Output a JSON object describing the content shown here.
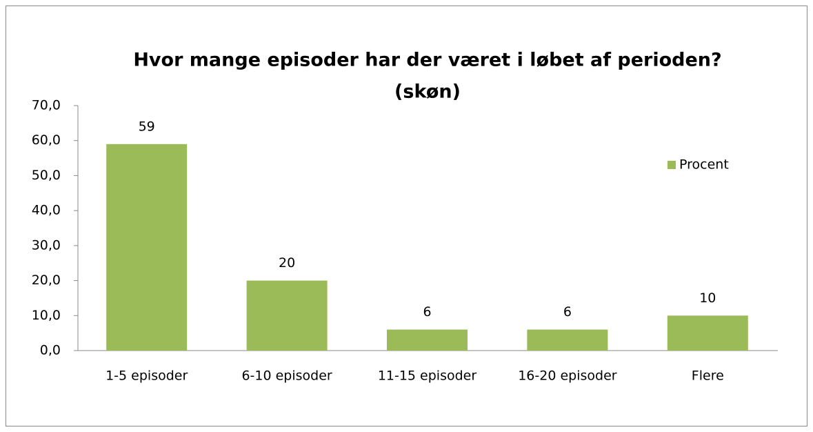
{
  "chart_data": {
    "type": "bar",
    "title": [
      "Hvor mange episoder har der været i løbet af perioden?",
      "(skøn)"
    ],
    "categories": [
      "1-5 episoder",
      "6-10 episoder",
      "11-15 episoder",
      "16-20 episoder",
      "Flere"
    ],
    "series": [
      {
        "name": "Procent",
        "color": "#9bbb59",
        "values": [
          59,
          20,
          6,
          6,
          10
        ]
      }
    ],
    "ylim": [
      0,
      70
    ],
    "yticks": [
      {
        "value": 0,
        "label": "0,0"
      },
      {
        "value": 10,
        "label": "10,0"
      },
      {
        "value": 20,
        "label": "20,0"
      },
      {
        "value": 30,
        "label": "30,0"
      },
      {
        "value": 40,
        "label": "40,0"
      },
      {
        "value": 50,
        "label": "50,0"
      },
      {
        "value": 60,
        "label": "60,0"
      },
      {
        "value": 70,
        "label": "70,0"
      }
    ],
    "legend": "right",
    "grid": false
  }
}
